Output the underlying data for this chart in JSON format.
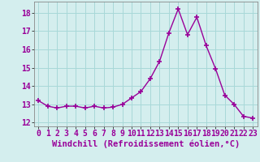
{
  "x": [
    0,
    1,
    2,
    3,
    4,
    5,
    6,
    7,
    8,
    9,
    10,
    11,
    12,
    13,
    14,
    15,
    16,
    17,
    18,
    19,
    20,
    21,
    22,
    23
  ],
  "y": [
    13.2,
    12.9,
    12.8,
    12.9,
    12.9,
    12.8,
    12.9,
    12.8,
    12.85,
    13.0,
    13.35,
    13.7,
    14.4,
    15.35,
    16.9,
    18.2,
    16.8,
    17.75,
    16.2,
    14.95,
    13.5,
    13.0,
    12.35,
    12.25
  ],
  "line_color": "#990099",
  "marker": "+",
  "marker_size": 4,
  "bg_color": "#d4eeee",
  "grid_color": "#a8d8d8",
  "xlabel": "Windchill (Refroidissement éolien,°C)",
  "xlim": [
    -0.5,
    23.5
  ],
  "ylim": [
    11.8,
    18.6
  ],
  "yticks": [
    12,
    13,
    14,
    15,
    16,
    17,
    18
  ],
  "xticks": [
    0,
    1,
    2,
    3,
    4,
    5,
    6,
    7,
    8,
    9,
    10,
    11,
    12,
    13,
    14,
    15,
    16,
    17,
    18,
    19,
    20,
    21,
    22,
    23
  ],
  "xlabel_fontsize": 7.5,
  "tick_fontsize": 7,
  "line_width": 1.0
}
